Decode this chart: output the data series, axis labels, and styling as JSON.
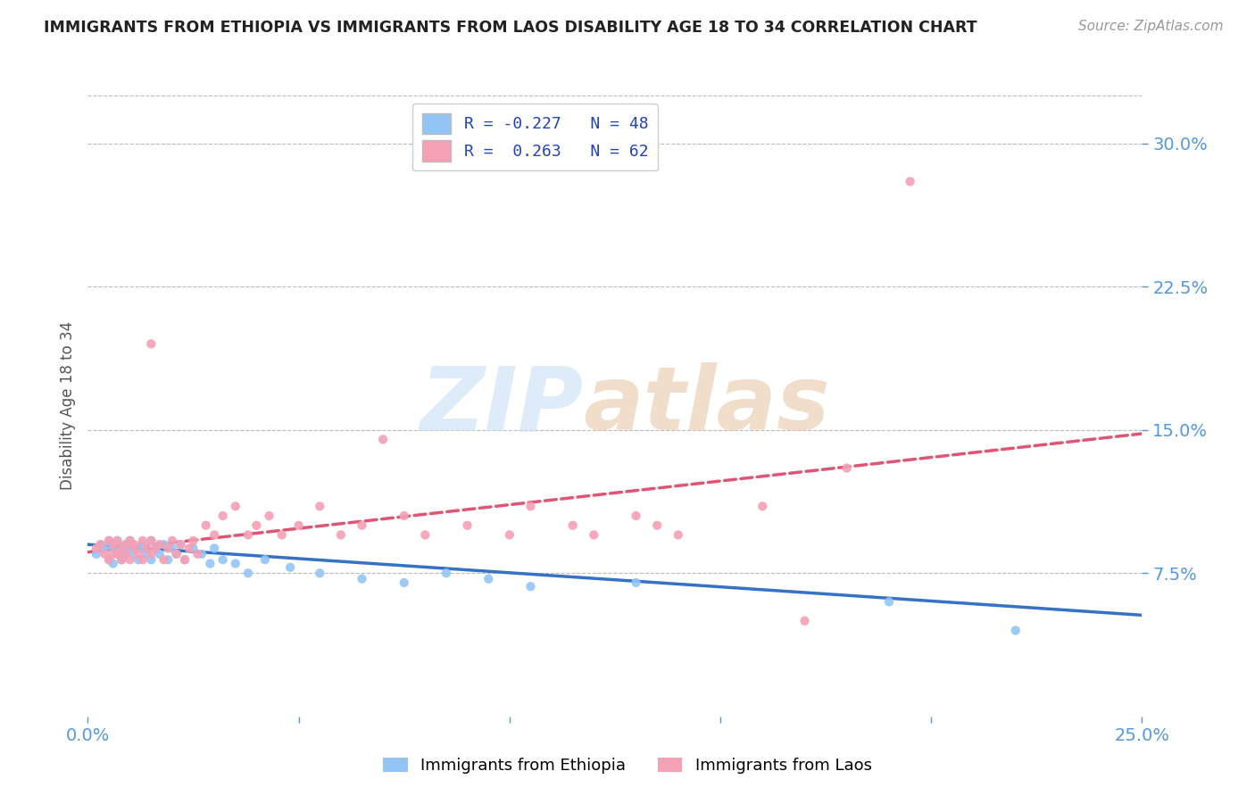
{
  "title": "IMMIGRANTS FROM ETHIOPIA VS IMMIGRANTS FROM LAOS DISABILITY AGE 18 TO 34 CORRELATION CHART",
  "source": "Source: ZipAtlas.com",
  "ylabel": "Disability Age 18 to 34",
  "xlim": [
    0.0,
    0.25
  ],
  "ylim": [
    0.0,
    0.325
  ],
  "yticks": [
    0.075,
    0.15,
    0.225,
    0.3
  ],
  "yticklabels": [
    "7.5%",
    "15.0%",
    "22.5%",
    "30.0%"
  ],
  "xticks": [
    0.0,
    0.05,
    0.1,
    0.15,
    0.2,
    0.25
  ],
  "ethiopia_color": "#92C5F5",
  "laos_color": "#F5A0B5",
  "ethiopia_line_color": "#3572C6",
  "laos_line_color": "#E05575",
  "ethiopia_R": -0.227,
  "ethiopia_N": 48,
  "laos_R": 0.263,
  "laos_N": 62,
  "legend_R_color": "#2244BB",
  "axis_tick_color": "#5599DD",
  "ethiopia_scatter_x": [
    0.002,
    0.003,
    0.004,
    0.005,
    0.005,
    0.006,
    0.006,
    0.007,
    0.007,
    0.008,
    0.008,
    0.009,
    0.009,
    0.01,
    0.01,
    0.011,
    0.012,
    0.013,
    0.013,
    0.014,
    0.015,
    0.015,
    0.016,
    0.017,
    0.018,
    0.019,
    0.02,
    0.021,
    0.022,
    0.023,
    0.025,
    0.027,
    0.029,
    0.03,
    0.032,
    0.035,
    0.038,
    0.042,
    0.048,
    0.055,
    0.065,
    0.075,
    0.085,
    0.095,
    0.105,
    0.13,
    0.19,
    0.22
  ],
  "ethiopia_scatter_y": [
    0.085,
    0.09,
    0.088,
    0.092,
    0.082,
    0.088,
    0.08,
    0.085,
    0.092,
    0.088,
    0.082,
    0.09,
    0.085,
    0.088,
    0.092,
    0.085,
    0.082,
    0.088,
    0.09,
    0.085,
    0.092,
    0.082,
    0.088,
    0.085,
    0.09,
    0.082,
    0.088,
    0.085,
    0.09,
    0.082,
    0.088,
    0.085,
    0.08,
    0.088,
    0.082,
    0.08,
    0.075,
    0.082,
    0.078,
    0.075,
    0.072,
    0.07,
    0.075,
    0.072,
    0.068,
    0.07,
    0.06,
    0.045
  ],
  "laos_scatter_x": [
    0.002,
    0.003,
    0.004,
    0.005,
    0.005,
    0.006,
    0.006,
    0.007,
    0.007,
    0.008,
    0.008,
    0.009,
    0.009,
    0.01,
    0.01,
    0.011,
    0.011,
    0.012,
    0.013,
    0.013,
    0.014,
    0.015,
    0.015,
    0.016,
    0.017,
    0.018,
    0.019,
    0.02,
    0.021,
    0.022,
    0.023,
    0.024,
    0.025,
    0.026,
    0.028,
    0.03,
    0.032,
    0.035,
    0.038,
    0.04,
    0.043,
    0.046,
    0.05,
    0.055,
    0.06,
    0.065,
    0.07,
    0.075,
    0.08,
    0.09,
    0.1,
    0.105,
    0.115,
    0.12,
    0.13,
    0.135,
    0.14,
    0.16,
    0.17,
    0.18,
    0.195,
    0.015
  ],
  "laos_scatter_y": [
    0.088,
    0.09,
    0.085,
    0.092,
    0.082,
    0.085,
    0.09,
    0.092,
    0.085,
    0.088,
    0.082,
    0.09,
    0.085,
    0.092,
    0.082,
    0.088,
    0.09,
    0.085,
    0.092,
    0.082,
    0.088,
    0.092,
    0.085,
    0.088,
    0.09,
    0.082,
    0.088,
    0.092,
    0.085,
    0.09,
    0.082,
    0.088,
    0.092,
    0.085,
    0.1,
    0.095,
    0.105,
    0.11,
    0.095,
    0.1,
    0.105,
    0.095,
    0.1,
    0.11,
    0.095,
    0.1,
    0.145,
    0.105,
    0.095,
    0.1,
    0.095,
    0.11,
    0.1,
    0.095,
    0.105,
    0.1,
    0.095,
    0.11,
    0.05,
    0.13,
    0.28,
    0.195
  ],
  "ethiopia_line_x0": 0.0,
  "ethiopia_line_y0": 0.09,
  "ethiopia_line_x1": 0.25,
  "ethiopia_line_y1": 0.053,
  "laos_line_x0": 0.0,
  "laos_line_y0": 0.086,
  "laos_line_x1": 0.25,
  "laos_line_y1": 0.148
}
